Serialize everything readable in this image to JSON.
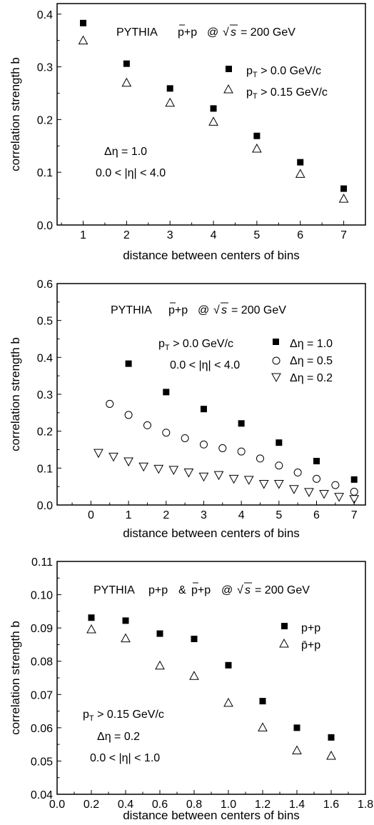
{
  "chart_data": [
    {
      "type": "scatter",
      "title": "PYTHIA p̄+p @ √s = 200 GeV",
      "title_parts": {
        "prefix": "PYTHIA",
        "system": "p+p",
        "at": "@",
        "energy": "= 200 GeV"
      },
      "xlabel": "distance between centers of bins",
      "ylabel": "correlation strength b",
      "xlim": [
        0.4,
        7.5
      ],
      "ylim": [
        0.0,
        0.42
      ],
      "xticks": [
        1,
        2,
        3,
        4,
        5,
        6,
        7
      ],
      "yticks": [
        0.0,
        0.1,
        0.2,
        0.3,
        0.4
      ],
      "xtick_labels": [
        "1",
        "2",
        "3",
        "4",
        "5",
        "6",
        "7"
      ],
      "ytick_labels": [
        "0.0",
        "0.1",
        "0.2",
        "0.3",
        "0.4"
      ],
      "annotations": [
        "Δη = 1.0",
        "0.0 < |η| < 4.0"
      ],
      "legend_position": "top-right",
      "series": [
        {
          "name": "pT > 0.0 GeV/c",
          "marker": "filled-square",
          "x": [
            1,
            2,
            3,
            4,
            5,
            6,
            7
          ],
          "y": [
            0.383,
            0.306,
            0.259,
            0.221,
            0.169,
            0.119,
            0.069
          ]
        },
        {
          "name": "pT > 0.15 GeV/c",
          "marker": "open-triangle-up",
          "x": [
            1,
            2,
            3,
            4,
            5,
            6,
            7
          ],
          "y": [
            0.35,
            0.27,
            0.232,
            0.196,
            0.145,
            0.097,
            0.05
          ]
        }
      ]
    },
    {
      "type": "scatter",
      "title": "PYTHIA p̄+p @ √s = 200 GeV",
      "title_parts": {
        "prefix": "PYTHIA",
        "system": "p+p",
        "at": "@",
        "energy": "= 200 GeV"
      },
      "xlabel": "distance between centers of bins",
      "ylabel": "correlation strength b",
      "xlim": [
        -0.9,
        7.3
      ],
      "ylim": [
        0.0,
        0.6
      ],
      "xticks": [
        0,
        1,
        2,
        3,
        4,
        5,
        6,
        7
      ],
      "yticks": [
        0.0,
        0.1,
        0.2,
        0.3,
        0.4,
        0.5,
        0.6
      ],
      "xtick_labels": [
        "0",
        "1",
        "2",
        "3",
        "4",
        "5",
        "6",
        "7"
      ],
      "ytick_labels": [
        "0.0",
        "0.1",
        "0.2",
        "0.3",
        "0.4",
        "0.5",
        "0.6"
      ],
      "annotations": [
        "pT > 0.0 GeV/c",
        "0.0 < |η| < 4.0"
      ],
      "legend_position": "right",
      "series": [
        {
          "name": "Δη = 1.0",
          "marker": "filled-square",
          "x": [
            1,
            2,
            3,
            4,
            5,
            6,
            7
          ],
          "y": [
            0.383,
            0.306,
            0.26,
            0.221,
            0.169,
            0.119,
            0.069
          ]
        },
        {
          "name": "Δη = 0.5",
          "marker": "open-circle",
          "x": [
            0.5,
            1,
            1.5,
            2,
            2.5,
            3,
            3.5,
            4,
            4.5,
            5,
            5.5,
            6,
            6.5,
            7
          ],
          "y": [
            0.274,
            0.244,
            0.216,
            0.196,
            0.181,
            0.164,
            0.154,
            0.145,
            0.126,
            0.107,
            0.088,
            0.071,
            0.054,
            0.036
          ]
        },
        {
          "name": "Δη = 0.2",
          "marker": "open-triangle-down",
          "x": [
            0.2,
            0.6,
            1.0,
            1.4,
            1.8,
            2.2,
            2.6,
            3.0,
            3.4,
            3.8,
            4.2,
            4.6,
            5.0,
            5.4,
            5.8,
            6.2,
            6.6,
            7.0
          ],
          "y": [
            0.141,
            0.131,
            0.118,
            0.104,
            0.098,
            0.095,
            0.088,
            0.077,
            0.081,
            0.071,
            0.068,
            0.057,
            0.057,
            0.043,
            0.035,
            0.03,
            0.022,
            0.016
          ]
        }
      ]
    },
    {
      "type": "scatter",
      "title": "PYTHIA p+p & p̄+p @ √s = 200 GeV",
      "title_parts": {
        "prefix": "PYTHIA",
        "system1": "p+p",
        "amp": "&",
        "system2": "p+p",
        "at": "@",
        "energy": "= 200 GeV"
      },
      "xlabel": "distance between centers of bins",
      "ylabel": "correlation strength b",
      "xlim": [
        0.0,
        1.8
      ],
      "ylim": [
        0.04,
        0.11
      ],
      "xticks": [
        0.0,
        0.2,
        0.4,
        0.6,
        0.8,
        1.0,
        1.2,
        1.4,
        1.6,
        1.8
      ],
      "yticks": [
        0.04,
        0.05,
        0.06,
        0.07,
        0.08,
        0.09,
        0.1,
        0.11
      ],
      "xtick_labels": [
        "0.0",
        "0.2",
        "0.4",
        "0.6",
        "0.8",
        "1.0",
        "1.2",
        "1.4",
        "1.6",
        "1.8"
      ],
      "ytick_labels": [
        "0.04",
        "0.05",
        "0.06",
        "0.07",
        "0.08",
        "0.09",
        "0.10",
        "0.11"
      ],
      "annotations": [
        "pT > 0.15 GeV/c",
        "Δη = 0.2",
        "0.0 < |η| < 1.0"
      ],
      "legend_position": "right",
      "series": [
        {
          "name": "p+p",
          "marker": "filled-square",
          "x": [
            0.2,
            0.4,
            0.6,
            0.8,
            1.0,
            1.2,
            1.4,
            1.6
          ],
          "y": [
            0.0931,
            0.0922,
            0.0883,
            0.0867,
            0.0788,
            0.068,
            0.06,
            0.0571
          ]
        },
        {
          "name": "p̄+p",
          "marker": "open-triangle-up",
          "x": [
            0.2,
            0.4,
            0.6,
            0.8,
            1.0,
            1.2,
            1.4,
            1.6
          ],
          "y": [
            0.0896,
            0.0869,
            0.0787,
            0.0756,
            0.0675,
            0.0601,
            0.0532,
            0.0516
          ]
        }
      ]
    }
  ]
}
